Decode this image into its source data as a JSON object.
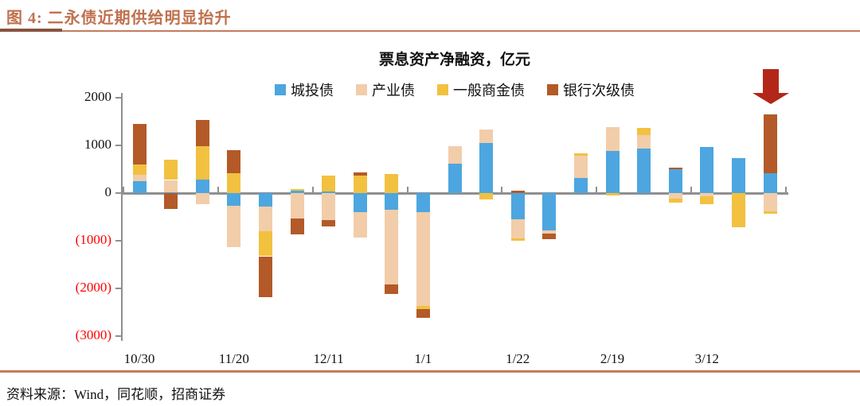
{
  "header": {
    "title": "图 4: 二永债近期供给明显抬升"
  },
  "source": {
    "text": "资料来源：Wind，同花顺，招商证券"
  },
  "colors": {
    "header_accent": "#C0714E",
    "divider": "#C47B5C",
    "axis_gray": "#8f8f8f",
    "negative_label_red": "#FF0000",
    "arrow_red": "#B22718"
  },
  "chart_data": {
    "type": "bar",
    "subtype": "stacked-vertical",
    "title": "票息资产净融资，亿元",
    "ylabel": "",
    "xlabel": "",
    "ylim": [
      -3000,
      2000
    ],
    "y_ticks": [
      {
        "text": "2000",
        "value": 2000,
        "negative": false
      },
      {
        "text": "1000",
        "value": 1000,
        "negative": false
      },
      {
        "text": "0",
        "value": 0,
        "negative": false
      },
      {
        "text": "(1000)",
        "value": -1000,
        "negative": true
      },
      {
        "text": "(2000)",
        "value": -2000,
        "negative": true
      },
      {
        "text": "(3000)",
        "value": -3000,
        "negative": true
      }
    ],
    "x_tick_labels": [
      "10/30",
      "11/20",
      "12/11",
      "1/1",
      "1/22",
      "2/19",
      "3/12"
    ],
    "bars_per_label_group": 3,
    "bar_count": 21,
    "legend_position": "top-center",
    "grid": false,
    "series": [
      {
        "name": "城投债",
        "color": "#4DA6DF",
        "values": [
          250,
          25,
          280,
          -260,
          -275,
          55,
          40,
          -400,
          -355,
          -400,
          620,
          1050,
          -550,
          -790,
          320,
          880,
          935,
          495,
          960,
          730,
          410
        ]
      },
      {
        "name": "产业债",
        "color": "#F2CDA9",
        "values": [
          140,
          250,
          -230,
          -880,
          -520,
          -535,
          -565,
          -525,
          -1560,
          -1960,
          360,
          290,
          -395,
          -55,
          470,
          505,
          275,
          -120,
          -65,
          0,
          -385
        ]
      },
      {
        "name": "一般商金债",
        "color": "#F2C140",
        "values": [
          210,
          420,
          710,
          420,
          -530,
          35,
          320,
          360,
          395,
          -80,
          0,
          -135,
          -55,
          0,
          40,
          -50,
          165,
          -85,
          -165,
          -715,
          -55
        ]
      },
      {
        "name": "银行次级债",
        "color": "#B35A28",
        "values": [
          855,
          -325,
          540,
          480,
          -865,
          -330,
          -140,
          75,
          -195,
          -185,
          0,
          0,
          45,
          -125,
          0,
          0,
          0,
          35,
          0,
          0,
          1240
        ]
      }
    ],
    "annotation": {
      "shape": "down-arrow",
      "color": "#B22718",
      "target_bar_index": 20
    }
  }
}
